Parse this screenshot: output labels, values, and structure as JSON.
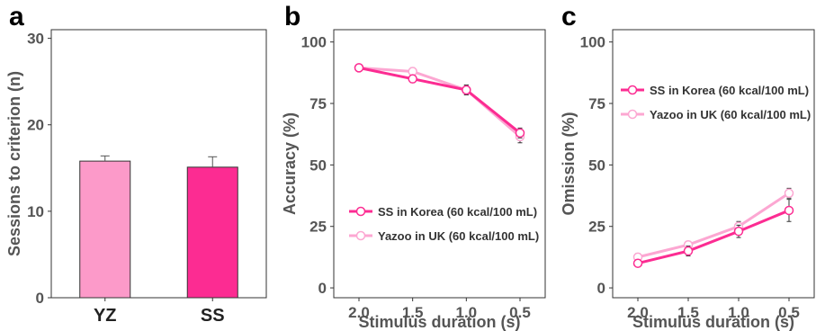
{
  "chart_data": [
    {
      "panel_label": "a",
      "type": "bar",
      "categories": [
        "YZ",
        "SS"
      ],
      "values": [
        15.8,
        15.1
      ],
      "errors": [
        0.6,
        1.2
      ],
      "colors": [
        "#fc9ac9",
        "#fc2c92"
      ],
      "ylabel": "Sessions to criterion (n)",
      "xlabel": "",
      "ylim": [
        0,
        31
      ],
      "yticks": [
        "0",
        "10",
        "20",
        "30"
      ],
      "grid": false
    },
    {
      "panel_label": "b",
      "type": "line",
      "categories": [
        "2.0",
        "1.5",
        "1.0",
        "0.5"
      ],
      "series": [
        {
          "name": "SS in Korea (60 kcal/100 mL)",
          "values": [
            89.5,
            85.0,
            80.5,
            63.0
          ],
          "errors": [
            1.0,
            1.5,
            2.0,
            2.0
          ],
          "color": "#fc2c92"
        },
        {
          "name": "Yazoo in UK (60 kcal/100 mL)",
          "values": [
            89.5,
            88.0,
            80.5,
            61.5
          ],
          "errors": [
            1.0,
            1.5,
            2.0,
            2.5
          ],
          "color": "#fca7d2"
        }
      ],
      "xlabel": "Stimulus duration (s)",
      "ylabel": "Accuracy (%)",
      "ylim": [
        -4,
        105
      ],
      "yticks": [
        "0",
        "25",
        "50",
        "75",
        "100"
      ],
      "legend": "bottom",
      "grid": false
    },
    {
      "panel_label": "c",
      "type": "line",
      "categories": [
        "2.0",
        "1.5",
        "1.0",
        "0.5"
      ],
      "series": [
        {
          "name": "SS in Korea (60 kcal/100 mL)",
          "values": [
            10.0,
            15.0,
            23.0,
            31.5
          ],
          "errors": [
            1.5,
            2.0,
            2.5,
            4.5
          ],
          "color": "#fc2c92"
        },
        {
          "name": "Yazoo in UK (60 kcal/100 mL)",
          "values": [
            12.5,
            17.5,
            25.0,
            38.5
          ],
          "errors": [
            1.5,
            1.5,
            2.0,
            2.0
          ],
          "color": "#fca7d2"
        }
      ],
      "xlabel": "Stimulus duration (s)",
      "ylabel": "Omission (%)",
      "ylim": [
        -4,
        105
      ],
      "yticks": [
        "0",
        "25",
        "50",
        "75",
        "100"
      ],
      "legend": "top",
      "grid": false
    }
  ]
}
